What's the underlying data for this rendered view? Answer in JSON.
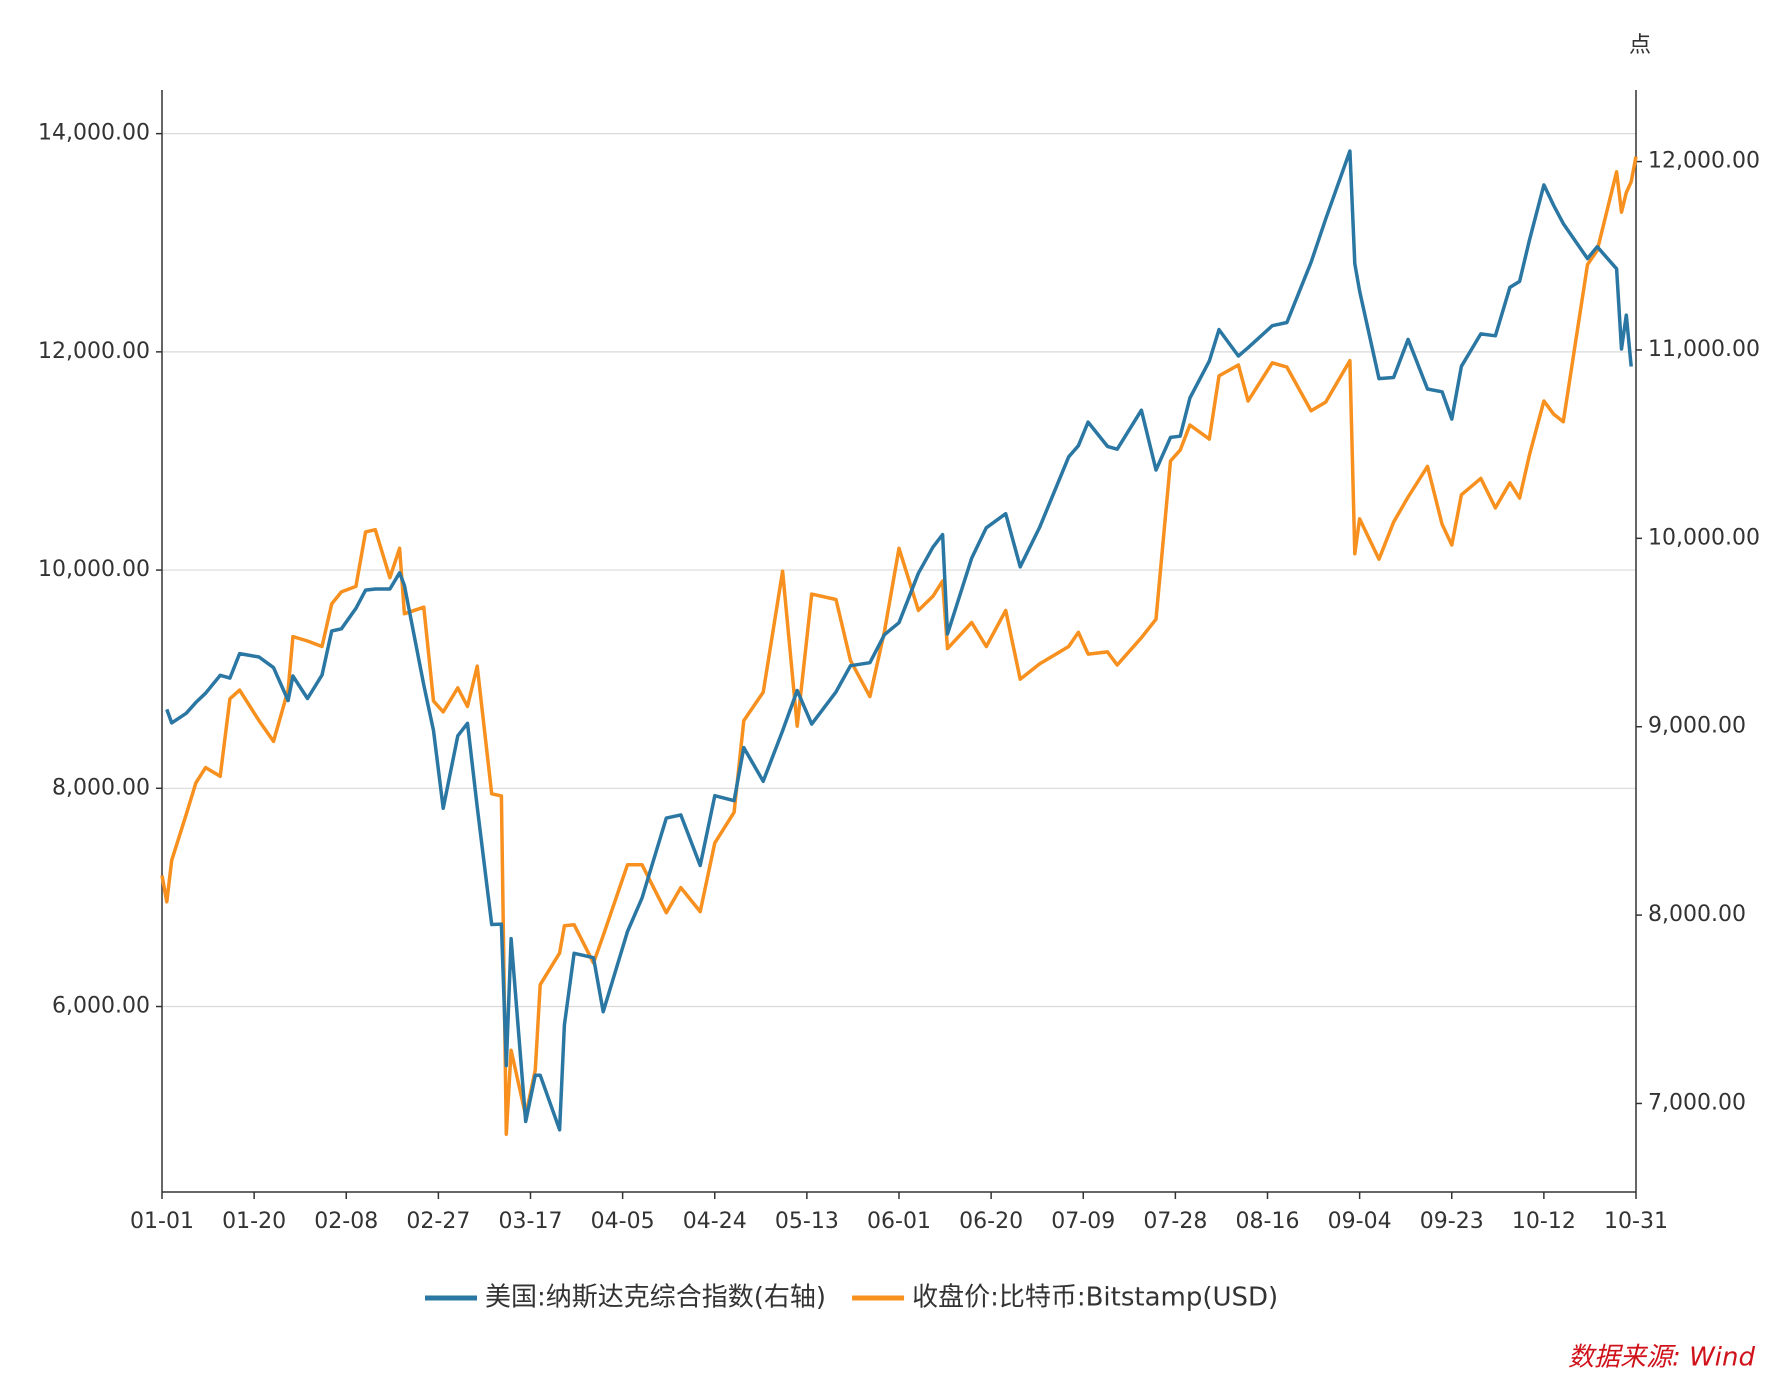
{
  "chart_data": {
    "type": "line",
    "x": [
      "01-01",
      "01-02",
      "01-03",
      "01-06",
      "01-08",
      "01-10",
      "01-13",
      "01-15",
      "01-17",
      "01-21",
      "01-24",
      "01-27",
      "01-28",
      "01-31",
      "02-03",
      "02-05",
      "02-07",
      "02-10",
      "02-12",
      "02-14",
      "02-17",
      "02-19",
      "02-20",
      "02-24",
      "02-26",
      "02-28",
      "03-02",
      "03-04",
      "03-06",
      "03-09",
      "03-11",
      "03-12",
      "03-13",
      "03-16",
      "03-18",
      "03-19",
      "03-23",
      "03-24",
      "03-26",
      "03-30",
      "04-01",
      "04-06",
      "04-09",
      "04-14",
      "04-17",
      "04-21",
      "04-24",
      "04-28",
      "04-30",
      "05-04",
      "05-08",
      "05-11",
      "05-14",
      "05-19",
      "05-22",
      "05-26",
      "05-29",
      "06-01",
      "06-05",
      "06-08",
      "06-10",
      "06-11",
      "06-16",
      "06-19",
      "06-23",
      "06-26",
      "06-30",
      "07-06",
      "07-08",
      "07-10",
      "07-14",
      "07-16",
      "07-21",
      "07-24",
      "07-27",
      "07-29",
      "07-31",
      "08-04",
      "08-06",
      "08-10",
      "08-12",
      "08-17",
      "08-20",
      "08-25",
      "08-28",
      "09-02",
      "09-03",
      "09-04",
      "09-08",
      "09-11",
      "09-14",
      "09-18",
      "09-21",
      "09-23",
      "09-25",
      "09-29",
      "10-02",
      "10-05",
      "10-07",
      "10-09",
      "10-12",
      "10-14",
      "10-16",
      "10-21",
      "10-23",
      "10-27",
      "10-28",
      "10-29",
      "10-30",
      "10-31"
    ],
    "series": [
      {
        "name": "美国:纳斯达克综合指数(右轴)",
        "color": "#2b77a3",
        "axis": "y2",
        "values": [
          null,
          9092,
          9020,
          9071,
          9129,
          9178,
          9273,
          9258,
          9388,
          9370,
          9314,
          9139,
          9269,
          9150,
          9274,
          9508,
          9520,
          9628,
          9725,
          9731,
          9731,
          9817,
          9750,
          9221,
          8980,
          8567,
          8952,
          9018,
          8575,
          7950,
          7952,
          7201,
          7875,
          6904,
          7150,
          7150,
          6860,
          7417,
          7797,
          7774,
          7487,
          7913,
          8090,
          8515,
          8532,
          8263,
          8634,
          8607,
          8889,
          8710,
          8979,
          9192,
          9014,
          9185,
          9324,
          9340,
          9489,
          9552,
          9815,
          9953,
          10020,
          9492,
          9895,
          10056,
          10131,
          9849,
          10058,
          10433,
          10492,
          10617,
          10488,
          10473,
          10680,
          10363,
          10536,
          10542,
          10745,
          10941,
          11108,
          10968,
          11012,
          11129,
          11146,
          11466,
          11695,
          12056,
          11458,
          11313,
          10848,
          10854,
          11056,
          10793,
          10778,
          10633,
          10913,
          11085,
          11075,
          11332,
          11364,
          11580,
          11876,
          11768,
          11671,
          11485,
          11548,
          11431,
          11005,
          11185,
          10912,
          null
        ]
      },
      {
        "name": "收盘价:比特币:Bitstamp(USD)",
        "color": "#f7901e",
        "axis": "y",
        "values": [
          7200,
          6960,
          7340,
          7760,
          8050,
          8190,
          8110,
          8820,
          8900,
          8620,
          8430,
          8900,
          9390,
          9350,
          9300,
          9690,
          9800,
          9850,
          10350,
          10370,
          9930,
          10200,
          9600,
          9660,
          8800,
          8700,
          8920,
          8750,
          9120,
          7950,
          7930,
          4830,
          5600,
          5000,
          5420,
          6200,
          6490,
          6740,
          6750,
          6400,
          6650,
          7300,
          7300,
          6860,
          7090,
          6870,
          7500,
          7780,
          8620,
          8880,
          9990,
          8570,
          9780,
          9730,
          9170,
          8840,
          9440,
          10200,
          9630,
          9760,
          9900,
          9280,
          9520,
          9300,
          9630,
          9000,
          9140,
          9300,
          9430,
          9230,
          9250,
          9130,
          9380,
          9550,
          11000,
          11100,
          11330,
          11200,
          11780,
          11880,
          11550,
          11900,
          11860,
          11460,
          11540,
          11920,
          10150,
          10470,
          10100,
          10440,
          10670,
          10950,
          10420,
          10230,
          10690,
          10840,
          10570,
          10800,
          10660,
          11050,
          11550,
          11430,
          11360,
          12800,
          12930,
          13650,
          13280,
          13460,
          13560,
          13790
        ]
      }
    ],
    "xticks": [
      "01-01",
      "01-20",
      "02-08",
      "02-27",
      "03-17",
      "04-05",
      "04-24",
      "05-13",
      "06-01",
      "06-20",
      "07-09",
      "07-28",
      "08-16",
      "09-04",
      "09-23",
      "10-12",
      "10-31"
    ],
    "ylim": [
      4300,
      14400
    ],
    "yticks": [
      {
        "value": 6000,
        "label": "6,000.00"
      },
      {
        "value": 8000,
        "label": "8,000.00"
      },
      {
        "value": 10000,
        "label": "10,000.00"
      },
      {
        "value": 12000,
        "label": "12,000.00"
      },
      {
        "value": 14000,
        "label": "14,000.00"
      }
    ],
    "y2lim": [
      6530,
      12380
    ],
    "y2ticks": [
      {
        "value": 7000,
        "label": "7,000.00"
      },
      {
        "value": 8000,
        "label": "8,000.00"
      },
      {
        "value": 9000,
        "label": "9,000.00"
      },
      {
        "value": 10000,
        "label": "10,000.00"
      },
      {
        "value": 11000,
        "label": "11,000.00"
      },
      {
        "value": 12000,
        "label": "12,000.00"
      }
    ],
    "y2label": "点",
    "grid": true,
    "legend": "bottom",
    "source": "数据来源: Wind"
  }
}
